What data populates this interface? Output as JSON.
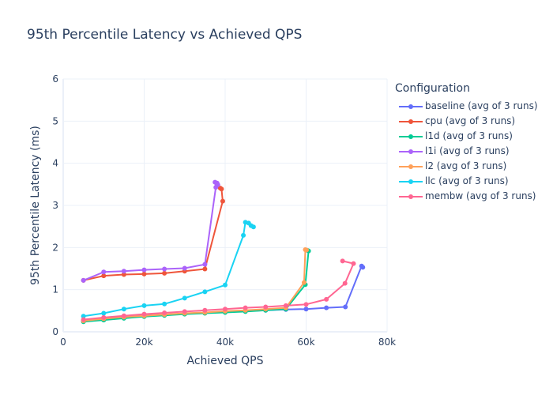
{
  "chart_data": {
    "type": "line",
    "title": "95th Percentile Latency vs Achieved QPS",
    "xlabel": "Achieved QPS",
    "ylabel": "95th Percentile Latency (ms)",
    "xlim": [
      0,
      80000
    ],
    "ylim": [
      0,
      6
    ],
    "xticks": [
      0,
      20000,
      40000,
      60000,
      80000
    ],
    "xtick_labels": [
      "0",
      "20k",
      "40k",
      "60k",
      "80k"
    ],
    "yticks": [
      0,
      1,
      2,
      3,
      4,
      5,
      6
    ],
    "ytick_labels": [
      "0",
      "1",
      "2",
      "3",
      "4",
      "5",
      "6"
    ],
    "grid": true,
    "legend_title": "Configuration",
    "legend_position": "right",
    "series": [
      {
        "name": "baseline (avg of 3 runs)",
        "color": "#636efa",
        "x": [
          5000,
          10000,
          15000,
          20000,
          25000,
          30000,
          35000,
          40000,
          45000,
          50000,
          55000,
          60000,
          65000,
          69700,
          73700,
          74000
        ],
        "y": [
          0.27,
          0.32,
          0.36,
          0.39,
          0.41,
          0.43,
          0.45,
          0.47,
          0.49,
          0.51,
          0.53,
          0.54,
          0.57,
          0.59,
          1.56,
          1.53
        ]
      },
      {
        "name": "cpu (avg of 3 runs)",
        "color": "#ef553b",
        "x": [
          5000,
          10000,
          15000,
          20000,
          25000,
          30000,
          35000,
          39400,
          39100,
          38800
        ],
        "y": [
          1.22,
          1.33,
          1.36,
          1.37,
          1.39,
          1.44,
          1.49,
          3.1,
          3.39,
          3.41
        ]
      },
      {
        "name": "l1d (avg of 3 runs)",
        "color": "#00cc96",
        "x": [
          5000,
          10000,
          15000,
          20000,
          25000,
          30000,
          35000,
          40000,
          45000,
          50000,
          55000,
          59800,
          60600,
          60400
        ],
        "y": [
          0.24,
          0.28,
          0.32,
          0.36,
          0.39,
          0.42,
          0.44,
          0.46,
          0.48,
          0.51,
          0.54,
          1.12,
          1.92,
          1.93
        ]
      },
      {
        "name": "l1i (avg of 3 runs)",
        "color": "#ab63fa",
        "x": [
          5000,
          10000,
          15000,
          20000,
          25000,
          30000,
          35000,
          37700,
          37500,
          38000,
          38200
        ],
        "y": [
          1.22,
          1.42,
          1.44,
          1.47,
          1.49,
          1.51,
          1.6,
          3.43,
          3.55,
          3.53,
          3.49
        ]
      },
      {
        "name": "l2 (avg of 3 runs)",
        "color": "#ffa15a",
        "x": [
          5000,
          10000,
          15000,
          20000,
          25000,
          30000,
          35000,
          40000,
          45000,
          50000,
          55000,
          59500,
          59800,
          60100
        ],
        "y": [
          0.26,
          0.31,
          0.35,
          0.38,
          0.41,
          0.44,
          0.46,
          0.49,
          0.51,
          0.54,
          0.57,
          1.17,
          1.95,
          1.94
        ]
      },
      {
        "name": "llc (avg of 3 runs)",
        "color": "#19d3f3",
        "x": [
          5000,
          10000,
          15000,
          20000,
          25000,
          30000,
          35000,
          40000,
          44500,
          45000,
          45800,
          46400,
          47000
        ],
        "y": [
          0.37,
          0.44,
          0.54,
          0.62,
          0.66,
          0.8,
          0.95,
          1.11,
          2.29,
          2.6,
          2.58,
          2.52,
          2.49
        ]
      },
      {
        "name": "membw (avg of 3 runs)",
        "color": "#ff6692",
        "x": [
          5000,
          10000,
          15000,
          20000,
          25000,
          30000,
          35000,
          40000,
          45000,
          50000,
          55000,
          60000,
          65000,
          69600,
          71700,
          69000
        ],
        "y": [
          0.29,
          0.34,
          0.38,
          0.42,
          0.45,
          0.48,
          0.51,
          0.54,
          0.57,
          0.59,
          0.62,
          0.65,
          0.77,
          1.15,
          1.62,
          1.68
        ]
      }
    ]
  }
}
